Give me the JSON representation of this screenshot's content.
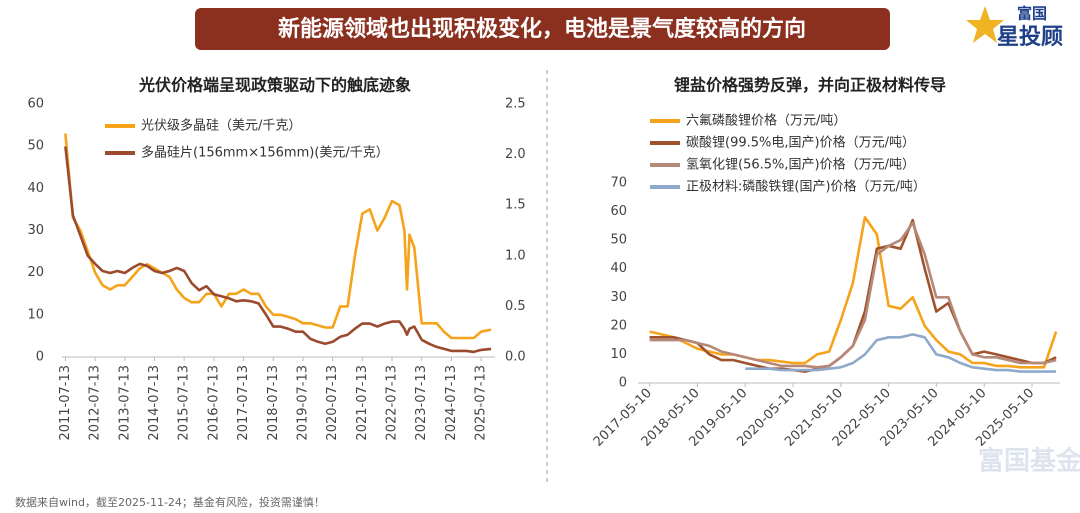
{
  "header": {
    "title": "新能源领域也出现积极变化，电池是景气度较高的方向"
  },
  "logo": {
    "line1": "富国",
    "line2": "星投顾"
  },
  "watermark": "富国基金",
  "footer": {
    "source": "数据来自wind，截至2025-11-24；基金有风险，投资需谨慎！"
  },
  "chart_data": [
    {
      "type": "line",
      "title": "光伏价格端呈现政策驱动下的触底迹象",
      "legend": "upper left",
      "x": [
        "2011-07-13",
        "2011-10-13",
        "2012-01-13",
        "2012-04-13",
        "2012-07-13",
        "2012-10-13",
        "2013-01-13",
        "2013-04-13",
        "2013-07-13",
        "2013-10-13",
        "2014-01-13",
        "2014-04-13",
        "2014-07-13",
        "2014-10-13",
        "2015-01-13",
        "2015-04-13",
        "2015-07-13",
        "2015-10-13",
        "2016-01-13",
        "2016-04-13",
        "2016-07-13",
        "2016-10-13",
        "2017-01-13",
        "2017-04-13",
        "2017-07-13",
        "2017-10-13",
        "2018-01-13",
        "2018-04-13",
        "2018-07-13",
        "2018-10-13",
        "2019-01-13",
        "2019-04-13",
        "2019-07-13",
        "2019-10-13",
        "2020-01-13",
        "2020-04-13",
        "2020-07-13",
        "2020-10-13",
        "2021-01-13",
        "2021-04-13",
        "2021-07-13",
        "2021-10-13",
        "2022-01-13",
        "2022-04-13",
        "2022-07-13",
        "2022-10-13",
        "2022-12-13",
        "2023-01-13",
        "2023-02-13",
        "2023-04-13",
        "2023-07-13",
        "2023-10-13",
        "2024-01-13",
        "2024-04-13",
        "2024-07-13",
        "2024-10-13",
        "2025-01-13",
        "2025-04-13",
        "2025-07-13",
        "2025-11-13"
      ],
      "xlim": [
        "2011-06-01",
        "2025-12-31"
      ],
      "xticks": [
        "2011-07-13",
        "2012-07-13",
        "2013-07-13",
        "2014-07-13",
        "2015-07-13",
        "2016-07-13",
        "2017-07-13",
        "2018-07-13",
        "2019-07-13",
        "2020-07-13",
        "2021-07-13",
        "2022-07-13",
        "2023-07-13",
        "2024-07-13",
        "2025-07-13"
      ],
      "ylim": [
        0,
        60
      ],
      "yticks": [
        0,
        10,
        20,
        30,
        40,
        50,
        60
      ],
      "y2lim": [
        0,
        2.5
      ],
      "y2ticks": [
        {
          "value": 0,
          "label": "0.0"
        },
        0.5,
        {
          "value": 1,
          "label": "1.0"
        },
        1.5,
        {
          "value": 2,
          "label": "2.0"
        },
        2.5
      ],
      "series": [
        {
          "name": "光伏级多晶硅（美元/千克）",
          "color": "#f5a31a",
          "values": [
            53,
            33,
            30,
            25,
            20,
            17,
            16,
            17,
            17,
            19,
            21,
            22,
            21,
            20,
            19,
            16,
            14,
            13,
            13,
            15,
            15,
            12,
            15,
            15,
            16,
            15,
            15,
            12,
            10,
            10,
            9.5,
            9,
            8,
            8,
            7.5,
            7,
            7,
            12,
            12,
            24,
            34,
            35,
            30,
            33,
            37,
            36,
            30,
            16,
            29,
            26,
            8,
            8,
            8,
            6,
            4.5,
            4.5,
            4.5,
            4.5,
            6,
            6.5
          ]
        },
        {
          "name": "多晶硅片(156mm×156mm)(美元/千克）",
          "color": "#9b4a2e",
          "axis": "y2",
          "values": [
            2.08,
            1.4,
            1.2,
            1.0,
            0.92,
            0.85,
            0.83,
            0.85,
            0.83,
            0.88,
            0.92,
            0.9,
            0.85,
            0.83,
            0.85,
            0.88,
            0.85,
            0.73,
            0.66,
            0.7,
            0.62,
            0.6,
            0.58,
            0.55,
            0.56,
            0.55,
            0.53,
            0.42,
            0.3,
            0.3,
            0.28,
            0.25,
            0.25,
            0.18,
            0.15,
            0.13,
            0.15,
            0.2,
            0.22,
            0.28,
            0.33,
            0.33,
            0.3,
            0.33,
            0.35,
            0.35,
            0.28,
            0.22,
            0.28,
            0.3,
            0.17,
            0.13,
            0.1,
            0.08,
            0.06,
            0.06,
            0.06,
            0.05,
            0.07,
            0.08
          ]
        }
      ]
    },
    {
      "type": "line",
      "title": "锂盐价格强势反弹，并向正极材料传导",
      "legend": "upper left",
      "x": [
        "2017-05-10",
        "2017-08-10",
        "2017-11-10",
        "2018-02-10",
        "2018-05-10",
        "2018-08-10",
        "2018-11-10",
        "2019-02-10",
        "2019-05-10",
        "2019-08-10",
        "2019-11-10",
        "2020-02-10",
        "2020-05-10",
        "2020-08-10",
        "2020-11-10",
        "2021-02-10",
        "2021-05-10",
        "2021-08-10",
        "2021-11-10",
        "2022-02-10",
        "2022-05-10",
        "2022-08-10",
        "2022-11-10",
        "2023-02-10",
        "2023-05-10",
        "2023-08-10",
        "2023-11-10",
        "2024-02-10",
        "2024-05-10",
        "2024-08-10",
        "2024-11-10",
        "2025-02-10",
        "2025-05-10",
        "2025-08-10",
        "2025-11-10"
      ],
      "xlim": [
        "2017-02-10",
        "2025-12-10"
      ],
      "xticks": [
        "2017-05-10",
        "2018-05-10",
        "2019-05-10",
        "2020-05-10",
        "2021-05-10",
        "2022-05-10",
        "2023-05-10",
        "2024-05-10",
        "2025-05-10"
      ],
      "ylim": [
        0,
        70
      ],
      "yticks": [
        0,
        10,
        20,
        30,
        40,
        50,
        60,
        70
      ],
      "series": [
        {
          "name": "六氟磷酸锂价格（万元/吨）",
          "color": "#f5a31a",
          "values": [
            18,
            17,
            16,
            14,
            12,
            11,
            10,
            10,
            9,
            8,
            8,
            7.5,
            7,
            7,
            10,
            11,
            22,
            35,
            58,
            52,
            27,
            26,
            30,
            20,
            15,
            11,
            10,
            7,
            7,
            6,
            6,
            5.5,
            5.5,
            5.5,
            18
          ]
        },
        {
          "name": "碳酸锂(99.5%电,国产)价格（万元/吨）",
          "color": "#a0522d",
          "values": [
            16,
            16,
            16,
            15,
            14,
            10,
            8,
            8,
            7,
            6,
            5,
            5,
            4.5,
            4,
            5,
            6,
            9,
            13,
            25,
            47,
            48,
            47,
            57,
            40,
            25,
            28,
            18,
            10,
            11,
            10,
            9,
            8,
            7,
            7,
            9
          ]
        },
        {
          "name": "氢氧化锂(56.5%,国产)价格（万元/吨）",
          "color": "#b58878",
          "values": [
            15,
            15,
            15,
            15,
            14,
            13,
            11,
            10,
            9,
            8,
            7,
            6,
            6,
            6,
            5.5,
            6,
            9,
            13,
            22,
            45,
            48,
            50,
            56,
            45,
            30,
            30,
            18,
            10,
            9,
            9,
            8,
            7,
            7,
            7,
            8
          ]
        },
        {
          "name": "正极材料:磷酸铁锂(国产)价格（万元/吨）",
          "color": "#8ea9c9",
          "values": [
            null,
            null,
            null,
            null,
            null,
            null,
            null,
            null,
            5,
            5,
            5,
            4.5,
            4.5,
            4.5,
            4.5,
            5,
            5.5,
            7,
            10,
            15,
            16,
            16,
            17,
            16,
            10,
            9,
            7,
            5.5,
            5,
            4.5,
            4.5,
            4,
            4,
            4,
            4
          ]
        }
      ]
    }
  ]
}
